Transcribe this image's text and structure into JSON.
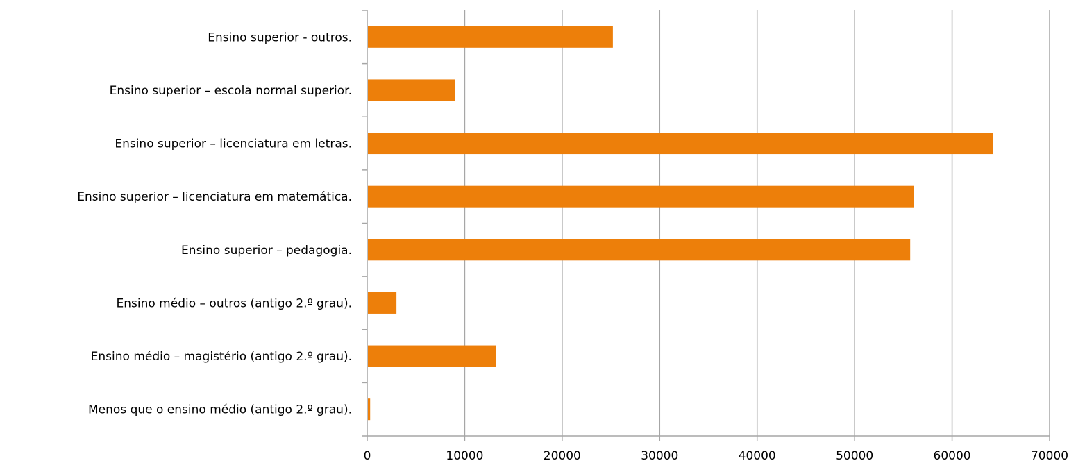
{
  "chart_data": {
    "type": "bar",
    "orientation": "horizontal",
    "title": "",
    "xlabel": "",
    "ylabel": "",
    "categories": [
      "Menos que o ensino médio (antigo 2.º grau).",
      "Ensino médio – magistério (antigo 2.º grau).",
      "Ensino médio – outros (antigo 2.º grau).",
      "Ensino superior – pedagogia.",
      "Ensino superior – licenciatura em matemática.",
      "Ensino superior – licenciatura em letras.",
      "Ensino superior – escola normal superior.",
      "Ensino superior - outros."
    ],
    "values": [
      300,
      13200,
      3000,
      55700,
      56100,
      64200,
      9000,
      25200
    ],
    "xlim": [
      0,
      70000
    ],
    "x_ticks": [
      "0",
      "10000",
      "20000",
      "30000",
      "40000",
      "50000",
      "60000",
      "70000"
    ],
    "grid": "vertical",
    "legend": "none",
    "colors": {
      "bar": "#ED7F0A",
      "grid": "#A6A6A6",
      "axis": "#A6A6A6"
    }
  }
}
